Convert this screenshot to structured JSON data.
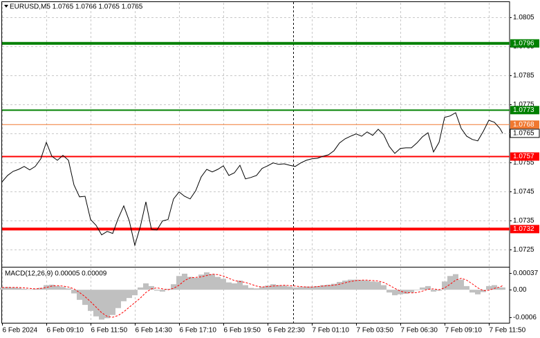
{
  "chart_data": [
    {
      "type": "line",
      "title": "EURUSD,M5  1.0765 1.0766 1.0765 1.0765",
      "x": [
        0,
        4,
        8,
        12,
        16,
        20,
        24,
        28,
        32,
        36,
        40,
        44,
        48,
        52,
        56,
        60,
        64,
        68,
        72,
        76,
        80,
        84,
        88,
        92,
        96,
        100,
        104,
        108,
        112,
        116,
        120,
        124,
        128,
        132,
        136,
        140,
        144,
        148,
        152,
        156,
        160,
        164,
        168,
        172,
        176,
        180,
        184,
        188,
        192,
        196,
        200,
        204,
        208,
        212,
        216,
        220,
        224,
        228,
        232,
        236,
        240,
        244,
        248,
        252,
        256,
        260,
        264,
        268,
        272,
        276,
        280,
        284,
        288,
        292,
        296,
        300,
        304,
        308,
        312,
        316,
        320,
        324,
        328,
        332,
        336,
        340,
        344,
        348,
        352,
        356,
        360,
        362
      ],
      "series": [
        {
          "color": "#000000",
          "values": [
            1.07483,
            1.07505,
            1.07519,
            1.07526,
            1.07536,
            1.07524,
            1.07536,
            1.07562,
            1.07619,
            1.07571,
            1.07557,
            1.07574,
            1.07557,
            1.07472,
            1.07431,
            1.07433,
            1.07353,
            1.07333,
            1.073,
            1.07312,
            1.07305,
            1.07357,
            1.074,
            1.07348,
            1.07264,
            1.07329,
            1.07414,
            1.07319,
            1.07317,
            1.07348,
            1.07353,
            1.07424,
            1.07448,
            1.07433,
            1.07424,
            1.07452,
            1.075,
            1.07526,
            1.07517,
            1.07526,
            1.07538,
            1.07505,
            1.07514,
            1.0754,
            1.07493,
            1.07498,
            1.07505,
            1.07529,
            1.07538,
            1.07548,
            1.07543,
            1.07545,
            1.0754,
            1.07536,
            1.07548,
            1.07557,
            1.07562,
            1.07564,
            1.07571,
            1.07576,
            1.0759,
            1.07617,
            1.07631,
            1.0764,
            1.07648,
            1.0764,
            1.07655,
            1.07643,
            1.07664,
            1.07645,
            1.07605,
            1.07581,
            1.07598,
            1.076,
            1.076,
            1.07617,
            1.07638,
            1.07652,
            1.07586,
            1.07619,
            1.07705,
            1.0771,
            1.07721,
            1.07667,
            1.0764,
            1.07629,
            1.07624,
            1.07657,
            1.07695,
            1.07688,
            1.07667,
            1.0765
          ]
        }
      ],
      "xlim": [
        0,
        367
      ],
      "ylim": [
        1.0719,
        1.081
      ],
      "yticks": [
        1.0725,
        1.0735,
        1.0745,
        1.0755,
        1.0765,
        1.0775,
        1.0785,
        1.0795,
        1.0805
      ],
      "xticks": [
        {
          "value": 0,
          "label": "6 Feb 2024"
        },
        {
          "value": 32,
          "label": "6 Feb 09:10"
        },
        {
          "value": 64,
          "label": "6 Feb 11:50"
        },
        {
          "value": 96,
          "label": "6 Feb 14:30"
        },
        {
          "value": 128,
          "label": "6 Feb 17:10"
        },
        {
          "value": 160,
          "label": "6 Feb 19:50"
        },
        {
          "value": 192,
          "label": "6 Feb 22:30"
        },
        {
          "value": 224,
          "label": "7 Feb 01:10"
        },
        {
          "value": 256,
          "label": "7 Feb 03:50"
        },
        {
          "value": 288,
          "label": "7 Feb 06:30"
        },
        {
          "value": 320,
          "label": "7 Feb 09:10"
        },
        {
          "value": 352,
          "label": "7 Feb 11:50"
        }
      ],
      "grid": true,
      "levels": [
        {
          "value": 1.0796,
          "color": "#008000",
          "line_width": 4
        },
        {
          "value": 1.0773,
          "color": "#008000",
          "line_width": 2
        },
        {
          "value": 1.0768,
          "color": "#f07830",
          "line_width": 1
        },
        {
          "value": 1.0757,
          "color": "#ff0000",
          "line_width": 2
        },
        {
          "value": 1.0732,
          "color": "#ff0000",
          "line_width": 4
        }
      ],
      "last_price": 1.0765
    },
    {
      "type": "bar",
      "title": "MACD(12,26,9) 0.00005 0.00009",
      "series": [
        {
          "type": "bar",
          "color": "#c0c0c0",
          "values": [
            5e-05,
            6e-05,
            5e-05,
            4e-05,
            2e-05,
            1e-05,
            2e-05,
            4e-05,
            0.0001,
            0.00011,
            8e-05,
            6e-05,
            3e-05,
            -8e-05,
            -0.00022,
            -0.00033,
            -0.00046,
            -0.00058,
            -0.00065,
            -0.00062,
            -0.00055,
            -0.0004,
            -0.00025,
            -0.00018,
            -0.00012,
            5e-05,
            0.00014,
            8e-05,
            -2e-05,
            -4e-05,
            2e-05,
            0.00012,
            0.0003,
            0.00035,
            0.00028,
            0.00026,
            0.00033,
            0.00038,
            0.00034,
            0.00028,
            0.00024,
            0.00016,
            0.00014,
            0.0002,
            0.0001,
            4e-05,
            3e-05,
            6e-05,
            9e-05,
            0.00012,
            0.0001,
            9e-05,
            7e-05,
            5e-05,
            6e-05,
            7e-05,
            7e-05,
            8e-05,
            0.0001,
            0.00011,
            0.00013,
            0.00017,
            0.0002,
            0.00022,
            0.00022,
            0.00021,
            0.0002,
            0.00018,
            0.00017,
            0.0001,
            -6e-05,
            -0.00012,
            -0.0001,
            -9e-05,
            -6e-05,
            -1e-05,
            5e-05,
            8e-05,
            -4e-05,
            -2e-05,
            0.00018,
            0.0003,
            0.00034,
            0.00022,
            8e-05,
            -6e-05,
            -0.0001,
            -5e-05,
            8e-05,
            0.0001,
            5e-05,
            5e-05
          ]
        },
        {
          "type": "line",
          "color": "#ff0000",
          "dash": true,
          "values": [
            5e-05,
            5e-05,
            5e-05,
            5e-05,
            4e-05,
            3e-05,
            2e-05,
            3e-05,
            5e-05,
            8e-05,
            9e-05,
            8e-05,
            6e-05,
            2e-05,
            -6e-05,
            -0.00015,
            -0.00026,
            -0.00038,
            -0.0005,
            -0.00058,
            -0.0006,
            -0.00056,
            -0.00048,
            -0.00038,
            -0.00028,
            -0.00018,
            -6e-05,
            2e-05,
            4e-05,
            2e-05,
            0,
            3e-05,
            0.0001,
            0.0002,
            0.00026,
            0.00027,
            0.00028,
            0.00031,
            0.00034,
            0.00033,
            0.0003,
            0.00025,
            0.0002,
            0.00018,
            0.00016,
            0.00012,
            8e-05,
            6e-05,
            7e-05,
            8e-05,
            9e-05,
            0.0001,
            9e-05,
            8e-05,
            7e-05,
            6e-05,
            6e-05,
            7e-05,
            8e-05,
            9e-05,
            0.0001,
            0.00012,
            0.00015,
            0.00018,
            0.0002,
            0.00021,
            0.00021,
            0.0002,
            0.00019,
            0.00016,
            0.0001,
            3e-05,
            -3e-05,
            -6e-05,
            -7e-05,
            -6e-05,
            -3e-05,
            1e-05,
            2e-05,
            0,
            4e-05,
            0.00012,
            0.00021,
            0.00025,
            0.00021,
            0.00013,
            4e-05,
            -2e-05,
            -1e-05,
            3e-05,
            6e-05,
            9e-05
          ]
        }
      ],
      "ylim": [
        -0.00072,
        0.00047
      ],
      "yticks": [
        0.00037,
        {
          "value": 0,
          "label": "0.00"
        },
        -0.0006
      ]
    }
  ]
}
